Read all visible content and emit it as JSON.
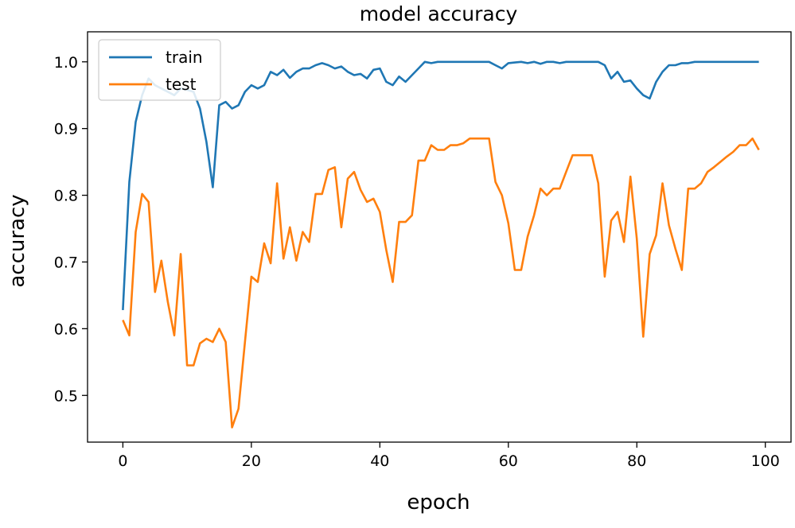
{
  "chart_data": {
    "type": "line",
    "title": "model accuracy",
    "xlabel": "epoch",
    "ylabel": "accuracy",
    "xlim": [
      -5.5,
      104
    ],
    "ylim": [
      0.43,
      1.045
    ],
    "xticks": [
      0,
      20,
      40,
      60,
      80,
      100
    ],
    "yticks": [
      0.5,
      0.6,
      0.7,
      0.8,
      0.9,
      1.0
    ],
    "ytick_labels": [
      "0.5",
      "0.6",
      "0.7",
      "0.8",
      "0.9",
      "1.0"
    ],
    "legend_position": "upper-left",
    "grid": false,
    "series": [
      {
        "name": "train",
        "color": "#1f77b4",
        "x": [
          0,
          1,
          2,
          3,
          4,
          5,
          6,
          7,
          8,
          9,
          10,
          11,
          12,
          13,
          14,
          15,
          16,
          17,
          18,
          19,
          20,
          21,
          22,
          23,
          24,
          25,
          26,
          27,
          28,
          29,
          30,
          31,
          32,
          33,
          34,
          35,
          36,
          37,
          38,
          39,
          40,
          41,
          42,
          43,
          44,
          45,
          46,
          47,
          48,
          49,
          50,
          51,
          52,
          53,
          54,
          55,
          56,
          57,
          58,
          59,
          60,
          61,
          62,
          63,
          64,
          65,
          66,
          67,
          68,
          69,
          70,
          71,
          72,
          73,
          74,
          75,
          76,
          77,
          78,
          79,
          80,
          81,
          82,
          83,
          84,
          85,
          86,
          87,
          88,
          89,
          90,
          91,
          92,
          93,
          94,
          95,
          96,
          97,
          98,
          99
        ],
        "values": [
          0.628,
          0.82,
          0.91,
          0.95,
          0.975,
          0.965,
          0.96,
          0.955,
          0.95,
          0.96,
          0.958,
          0.955,
          0.93,
          0.88,
          0.812,
          0.935,
          0.94,
          0.93,
          0.935,
          0.955,
          0.965,
          0.96,
          0.965,
          0.985,
          0.98,
          0.988,
          0.976,
          0.985,
          0.99,
          0.99,
          0.995,
          0.998,
          0.995,
          0.99,
          0.993,
          0.985,
          0.98,
          0.982,
          0.975,
          0.988,
          0.99,
          0.97,
          0.965,
          0.978,
          0.97,
          0.98,
          0.99,
          1.0,
          0.998,
          1.0,
          1.0,
          1.0,
          1.0,
          1.0,
          1.0,
          1.0,
          1.0,
          1.0,
          0.995,
          0.99,
          0.998,
          0.999,
          1.0,
          0.998,
          1.0,
          0.997,
          1.0,
          1.0,
          0.998,
          1.0,
          1.0,
          1.0,
          1.0,
          1.0,
          1.0,
          0.995,
          0.975,
          0.985,
          0.97,
          0.972,
          0.96,
          0.95,
          0.945,
          0.97,
          0.985,
          0.995,
          0.995,
          0.998,
          0.998,
          1.0,
          1.0,
          1.0,
          1.0,
          1.0,
          1.0,
          1.0,
          1.0,
          1.0,
          1.0,
          1.0
        ]
      },
      {
        "name": "test",
        "color": "#ff7f0e",
        "x": [
          0,
          1,
          2,
          3,
          4,
          5,
          6,
          7,
          8,
          9,
          10,
          11,
          12,
          13,
          14,
          15,
          16,
          17,
          18,
          19,
          20,
          21,
          22,
          23,
          24,
          25,
          26,
          27,
          28,
          29,
          30,
          31,
          32,
          33,
          34,
          35,
          36,
          37,
          38,
          39,
          40,
          41,
          42,
          43,
          44,
          45,
          46,
          47,
          48,
          49,
          50,
          51,
          52,
          53,
          54,
          55,
          56,
          57,
          58,
          59,
          60,
          61,
          62,
          63,
          64,
          65,
          66,
          67,
          68,
          69,
          70,
          71,
          72,
          73,
          74,
          75,
          76,
          77,
          78,
          79,
          80,
          81,
          82,
          83,
          84,
          85,
          86,
          87,
          88,
          89,
          90,
          91,
          92,
          93,
          94,
          95,
          96,
          97,
          98,
          99
        ],
        "values": [
          0.613,
          0.59,
          0.745,
          0.802,
          0.79,
          0.655,
          0.702,
          0.64,
          0.59,
          0.712,
          0.545,
          0.545,
          0.578,
          0.585,
          0.58,
          0.6,
          0.58,
          0.452,
          0.48,
          0.58,
          0.678,
          0.67,
          0.728,
          0.698,
          0.818,
          0.705,
          0.752,
          0.702,
          0.745,
          0.73,
          0.802,
          0.802,
          0.838,
          0.842,
          0.752,
          0.825,
          0.835,
          0.808,
          0.79,
          0.795,
          0.775,
          0.718,
          0.67,
          0.76,
          0.76,
          0.77,
          0.852,
          0.852,
          0.875,
          0.868,
          0.868,
          0.875,
          0.875,
          0.878,
          0.885,
          0.885,
          0.885,
          0.885,
          0.82,
          0.8,
          0.758,
          0.688,
          0.688,
          0.738,
          0.77,
          0.81,
          0.8,
          0.81,
          0.81,
          0.835,
          0.86,
          0.86,
          0.86,
          0.86,
          0.818,
          0.678,
          0.762,
          0.775,
          0.73,
          0.828,
          0.735,
          0.588,
          0.712,
          0.74,
          0.818,
          0.755,
          0.72,
          0.688,
          0.81,
          0.81,
          0.818,
          0.835,
          0.842,
          0.85,
          0.858,
          0.865,
          0.875,
          0.875,
          0.885,
          0.868
        ]
      }
    ]
  }
}
